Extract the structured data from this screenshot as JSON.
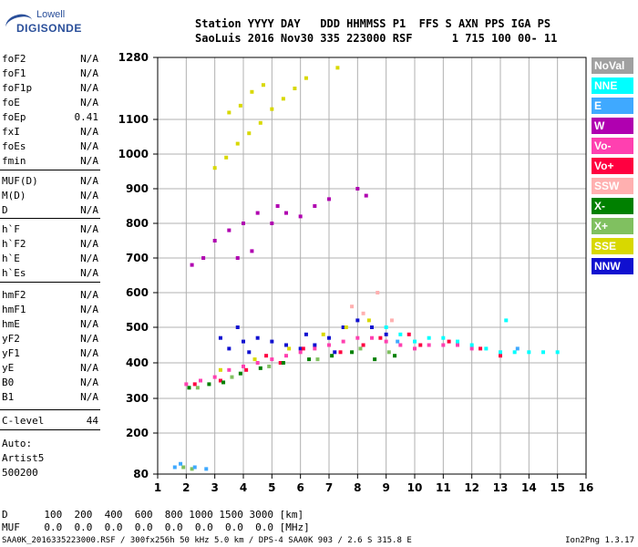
{
  "logo": {
    "line1": "Lowell",
    "line2": "DIGISONDE"
  },
  "header": {
    "row1": "Station YYYY DAY   DDD HHMMSS P1  FFS S AXN PPS IGA PS",
    "row2": "SaoLuis 2016 Nov30 335 223000 RSF      1 715 100 00- 11"
  },
  "params": [
    {
      "name": "foF2",
      "value": "N/A"
    },
    {
      "name": "foF1",
      "value": "N/A"
    },
    {
      "name": "foF1p",
      "value": "N/A"
    },
    {
      "name": "foE",
      "value": "N/A"
    },
    {
      "name": "foEp",
      "value": "0.41"
    },
    {
      "name": "fxI",
      "value": "N/A"
    },
    {
      "name": "foEs",
      "value": "N/A"
    },
    {
      "name": "fmin",
      "value": "N/A"
    },
    {
      "name": "MUF(D)",
      "value": "N/A"
    },
    {
      "name": "M(D)",
      "value": "N/A"
    },
    {
      "name": "D",
      "value": "N/A"
    },
    {
      "name": "h`F",
      "value": "N/A"
    },
    {
      "name": "h`F2",
      "value": "N/A"
    },
    {
      "name": "h`E",
      "value": "N/A"
    },
    {
      "name": "h`Es",
      "value": "N/A"
    },
    {
      "name": "hmF2",
      "value": "N/A"
    },
    {
      "name": "hmF1",
      "value": "N/A"
    },
    {
      "name": "hmE",
      "value": "N/A"
    },
    {
      "name": "yF2",
      "value": "N/A"
    },
    {
      "name": "yF1",
      "value": "N/A"
    },
    {
      "name": "yE",
      "value": "N/A"
    },
    {
      "name": "B0",
      "value": "N/A"
    },
    {
      "name": "B1",
      "value": "N/A"
    },
    {
      "name": "C-level",
      "value": "44"
    }
  ],
  "auto": {
    "line1": "Auto:",
    "line2": "Artist5",
    "line3": "500200"
  },
  "legend": [
    {
      "label": "NoVal",
      "color": "#a0a0a0"
    },
    {
      "label": "NNE",
      "color": "#00ffff"
    },
    {
      "label": "E",
      "color": "#3fa9ff"
    },
    {
      "label": "W",
      "color": "#b000b0"
    },
    {
      "label": "Vo-",
      "color": "#ff40b0"
    },
    {
      "label": "Vo+",
      "color": "#ff0040"
    },
    {
      "label": "SSW",
      "color": "#ffb0b0"
    },
    {
      "label": "X-",
      "color": "#008000"
    },
    {
      "label": "X+",
      "color": "#80c060"
    },
    {
      "label": "SSE",
      "color": "#d8d800"
    },
    {
      "label": "NNW",
      "color": "#1010d0"
    }
  ],
  "footer": {
    "row1": "D      100  200  400  600  800 1000 1500 3000 [km]",
    "row2": "MUF    0.0  0.0  0.0  0.0  0.0  0.0  0.0  0.0 [MHz]",
    "file": "SAA0K_2016335223000.RSF / 300fx256h 50 kHz 5.0 km / DPS-4 SAA0K 903 / 2.6 S 315.8 E",
    "version": "Ion2Png 1.3.17"
  },
  "chart_data": {
    "type": "scatter",
    "xlim": [
      1,
      16
    ],
    "ylim": [
      80,
      1280
    ],
    "x_ticks": [
      1,
      2,
      3,
      4,
      5,
      6,
      7,
      8,
      9,
      10,
      11,
      12,
      13,
      14,
      15,
      16
    ],
    "y_ticks": [
      80,
      200,
      300,
      400,
      500,
      600,
      700,
      800,
      900,
      1000,
      1100,
      1280
    ],
    "grid": true,
    "series": [
      {
        "color": "#1010d0",
        "points": [
          [
            3.2,
            470
          ],
          [
            3.5,
            440
          ],
          [
            4,
            460
          ],
          [
            4.5,
            470
          ],
          [
            5,
            460
          ],
          [
            5.5,
            450
          ],
          [
            6,
            440
          ],
          [
            6.5,
            450
          ],
          [
            7,
            470
          ],
          [
            7.5,
            500
          ],
          [
            8,
            520
          ],
          [
            8.5,
            500
          ],
          [
            9,
            480
          ],
          [
            3.8,
            500
          ],
          [
            4.2,
            430
          ],
          [
            6.2,
            480
          ],
          [
            7.2,
            430
          ]
        ]
      },
      {
        "color": "#b000b0",
        "points": [
          [
            3,
            750
          ],
          [
            3.5,
            780
          ],
          [
            4,
            800
          ],
          [
            4.5,
            830
          ],
          [
            5,
            800
          ],
          [
            5.5,
            830
          ],
          [
            6,
            820
          ],
          [
            6.5,
            850
          ],
          [
            7,
            870
          ],
          [
            3.8,
            700
          ],
          [
            4.3,
            720
          ],
          [
            5.2,
            850
          ],
          [
            2.2,
            680
          ],
          [
            2.6,
            700
          ],
          [
            8,
            900
          ],
          [
            8.3,
            880
          ]
        ]
      },
      {
        "color": "#ff40b0",
        "points": [
          [
            2,
            340
          ],
          [
            2.5,
            350
          ],
          [
            3,
            360
          ],
          [
            3.5,
            380
          ],
          [
            4,
            390
          ],
          [
            4.5,
            400
          ],
          [
            5,
            410
          ],
          [
            5.5,
            420
          ],
          [
            6,
            430
          ],
          [
            6.5,
            440
          ],
          [
            7,
            450
          ],
          [
            7.5,
            460
          ],
          [
            8,
            470
          ],
          [
            8.5,
            470
          ],
          [
            9,
            460
          ],
          [
            9.5,
            450
          ],
          [
            10,
            440
          ],
          [
            10.5,
            450
          ],
          [
            11,
            450
          ],
          [
            11.5,
            450
          ],
          [
            12,
            440
          ]
        ]
      },
      {
        "color": "#ff0040",
        "points": [
          [
            2.3,
            340
          ],
          [
            3.2,
            350
          ],
          [
            4.1,
            380
          ],
          [
            4.8,
            420
          ],
          [
            5.3,
            400
          ],
          [
            6.1,
            440
          ],
          [
            7.4,
            430
          ],
          [
            8.2,
            450
          ],
          [
            8.8,
            470
          ],
          [
            9.8,
            480
          ],
          [
            10.2,
            450
          ],
          [
            11.2,
            460
          ],
          [
            12.3,
            440
          ],
          [
            13,
            420
          ]
        ]
      },
      {
        "color": "#008000",
        "points": [
          [
            2.1,
            330
          ],
          [
            2.8,
            340
          ],
          [
            3.3,
            345
          ],
          [
            3.9,
            370
          ],
          [
            4.6,
            385
          ],
          [
            5.4,
            400
          ],
          [
            6.3,
            410
          ],
          [
            7.1,
            420
          ],
          [
            7.8,
            430
          ],
          [
            8.6,
            410
          ],
          [
            9.3,
            420
          ]
        ]
      },
      {
        "color": "#d8d800",
        "points": [
          [
            3,
            960
          ],
          [
            3.4,
            990
          ],
          [
            3.8,
            1030
          ],
          [
            4.2,
            1060
          ],
          [
            4.6,
            1090
          ],
          [
            5,
            1130
          ],
          [
            5.4,
            1160
          ],
          [
            5.8,
            1190
          ],
          [
            6.2,
            1220
          ],
          [
            3.5,
            1120
          ],
          [
            3.9,
            1140
          ],
          [
            4.3,
            1180
          ],
          [
            4.7,
            1200
          ],
          [
            7.3,
            1250
          ],
          [
            3.2,
            380
          ],
          [
            4.4,
            410
          ],
          [
            5.6,
            440
          ],
          [
            6.8,
            480
          ],
          [
            7.6,
            500
          ],
          [
            8.4,
            520
          ]
        ]
      },
      {
        "color": "#00ffff",
        "points": [
          [
            9,
            500
          ],
          [
            9.5,
            480
          ],
          [
            10,
            460
          ],
          [
            10.5,
            470
          ],
          [
            11,
            470
          ],
          [
            11.5,
            460
          ],
          [
            12,
            450
          ],
          [
            12.5,
            440
          ],
          [
            13,
            430
          ],
          [
            13.5,
            430
          ],
          [
            14,
            430
          ],
          [
            14.5,
            430
          ],
          [
            15,
            430
          ],
          [
            13.2,
            520
          ]
        ]
      },
      {
        "color": "#80c060",
        "points": [
          [
            2.4,
            330
          ],
          [
            3.6,
            360
          ],
          [
            4.9,
            390
          ],
          [
            6.6,
            410
          ],
          [
            8.1,
            440
          ],
          [
            9.1,
            430
          ],
          [
            1.9,
            100
          ],
          [
            2.2,
            95
          ]
        ]
      },
      {
        "color": "#3fa9ff",
        "points": [
          [
            1.8,
            110
          ],
          [
            2.3,
            100
          ],
          [
            2.7,
            95
          ],
          [
            1.6,
            100
          ],
          [
            9.4,
            460
          ],
          [
            13.6,
            440
          ]
        ]
      },
      {
        "color": "#ffb0b0",
        "points": [
          [
            7.8,
            560
          ],
          [
            8.2,
            540
          ],
          [
            8.7,
            600
          ],
          [
            9.2,
            520
          ]
        ]
      }
    ]
  }
}
